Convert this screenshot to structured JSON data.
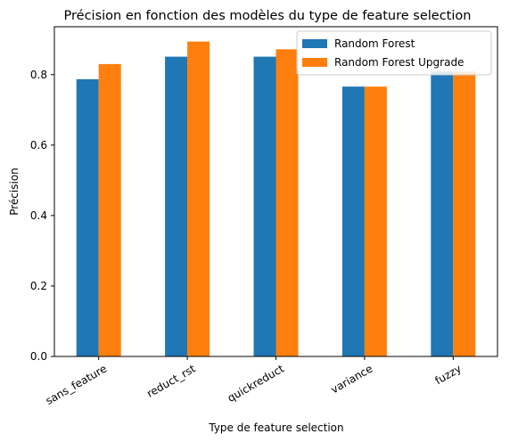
{
  "chart_data": {
    "type": "bar",
    "title": "Précision en fonction des modèles du type de feature selection",
    "xlabel": "Type de feature selection",
    "ylabel": "Précision",
    "categories": [
      "sans_feature",
      "reduct_rst",
      "quickreduct",
      "variance",
      "fuzzy"
    ],
    "series": [
      {
        "name": "Random Forest",
        "color": "#1f77b4",
        "values": [
          0.787,
          0.851,
          0.851,
          0.766,
          0.809
        ]
      },
      {
        "name": "Random Forest Upgrade",
        "color": "#ff7f0e",
        "values": [
          0.83,
          0.894,
          0.872,
          0.766,
          0.809
        ]
      }
    ],
    "ylim": [
      0,
      0.936
    ],
    "yticks": [
      "0.0",
      "0.2",
      "0.4",
      "0.6",
      "0.8"
    ],
    "grid": false,
    "legend_position": "top-right"
  }
}
